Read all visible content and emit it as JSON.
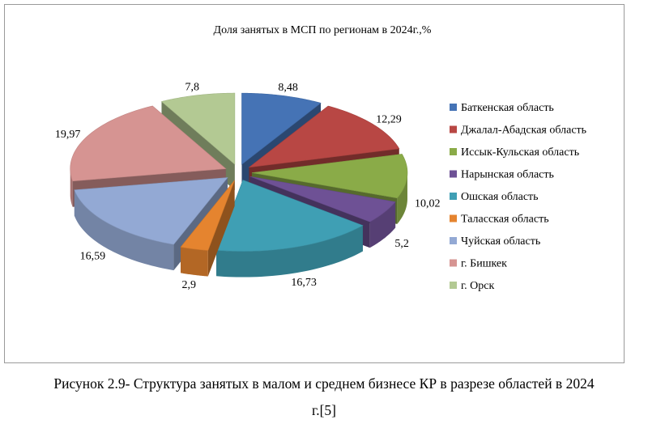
{
  "chart_data": {
    "type": "pie",
    "style": "exploded-3d",
    "title": "Доля занятых в МСП по регионам в 2024г.,%",
    "categories": [
      "Баткенская область",
      "Джалал-Абадская область",
      "Иссык-Кульская область",
      "Нарынская область",
      "Ошская область",
      "Таласская область",
      "Чуйская область",
      "г. Бишкек",
      "г. Орск"
    ],
    "values": [
      8.48,
      12.29,
      10.02,
      5.2,
      16.73,
      2.9,
      16.59,
      19.97,
      7.8
    ],
    "data_labels": [
      "8,48",
      "12,29",
      "10,02",
      "5,2",
      "16,73",
      "2,9",
      "16,59",
      "19,97",
      "7,8"
    ],
    "colors": [
      "#4573b5",
      "#b84744",
      "#8aab48",
      "#6e5195",
      "#3f9fb4",
      "#e5842f",
      "#93a9d4",
      "#d69492",
      "#b3c993"
    ],
    "legend_position": "right"
  },
  "caption": {
    "line1": "Рисунок 2.9- Структура занятых в малом и среднем бизнесе КР в разрезе областей в 2024",
    "line2": "г.[5]"
  }
}
